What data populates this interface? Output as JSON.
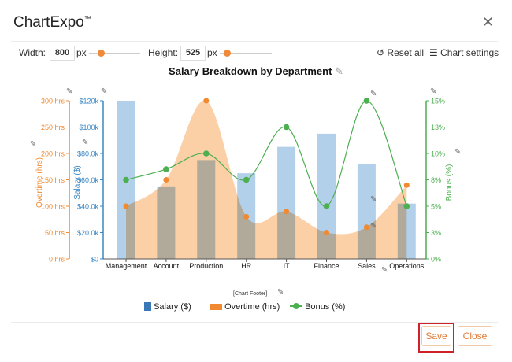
{
  "app": {
    "title": "ChartExpo",
    "trademark": "™",
    "close_icon": "close-icon"
  },
  "toolbar": {
    "width_label": "Width:",
    "width_value": "800",
    "width_unit": "px",
    "height_label": "Height:",
    "height_value": "525",
    "height_unit": "px",
    "reset_label": "Reset all",
    "settings_label": "Chart settings"
  },
  "footer": {
    "save_label": "Save",
    "close_label": "Close",
    "chart_footer": "[Chart Footer]"
  },
  "colors": {
    "salary": "#b3d0ea",
    "overtime": "#fcc898",
    "overtime_point": "#f0892f",
    "bonus": "#4caf50",
    "salary_axis": "#3a87c4",
    "overtime_axis": "#f0892f"
  },
  "chart_data": {
    "type": "bar",
    "title": "Salary Breakdown by Department",
    "categories": [
      "Management",
      "Account",
      "Production",
      "HR",
      "IT",
      "Finance",
      "Sales",
      "Operations"
    ],
    "series": [
      {
        "name": "Salary ($)",
        "type": "bar",
        "axis": "left-inner",
        "values": [
          120000,
          55000,
          75000,
          65000,
          85000,
          95000,
          72000,
          42000
        ]
      },
      {
        "name": "Overtime (hrs)",
        "type": "area",
        "axis": "left-outer",
        "values": [
          100,
          150,
          300,
          80,
          90,
          50,
          60,
          140
        ]
      },
      {
        "name": "Bonus (%)",
        "type": "line",
        "axis": "right",
        "values": [
          7.5,
          8.5,
          10,
          7.5,
          12.5,
          5,
          15,
          5
        ]
      }
    ],
    "axes": {
      "salary": {
        "label": "Salary ($)",
        "range": [
          0,
          120000
        ],
        "ticks": [
          "$0",
          "$20.0k",
          "$40.0k",
          "$60.0k",
          "$80.0k",
          "$100k",
          "$120k"
        ]
      },
      "overtime": {
        "label": "Overtime (hrs)",
        "range": [
          0,
          300
        ],
        "ticks": [
          "0 hrs",
          "50 hrs",
          "100 hrs",
          "150 hrs",
          "200 hrs",
          "250 hrs",
          "300 hrs"
        ]
      },
      "bonus": {
        "label": "Bonus (%)",
        "range": [
          0,
          15
        ],
        "ticks": [
          "0%",
          "3%",
          "5%",
          "8%",
          "10%",
          "13%",
          "15%"
        ]
      }
    },
    "legend": {
      "position": "bottom",
      "entries": [
        "Salary ($)",
        "Overtime (hrs)",
        "Bonus (%)"
      ]
    }
  }
}
